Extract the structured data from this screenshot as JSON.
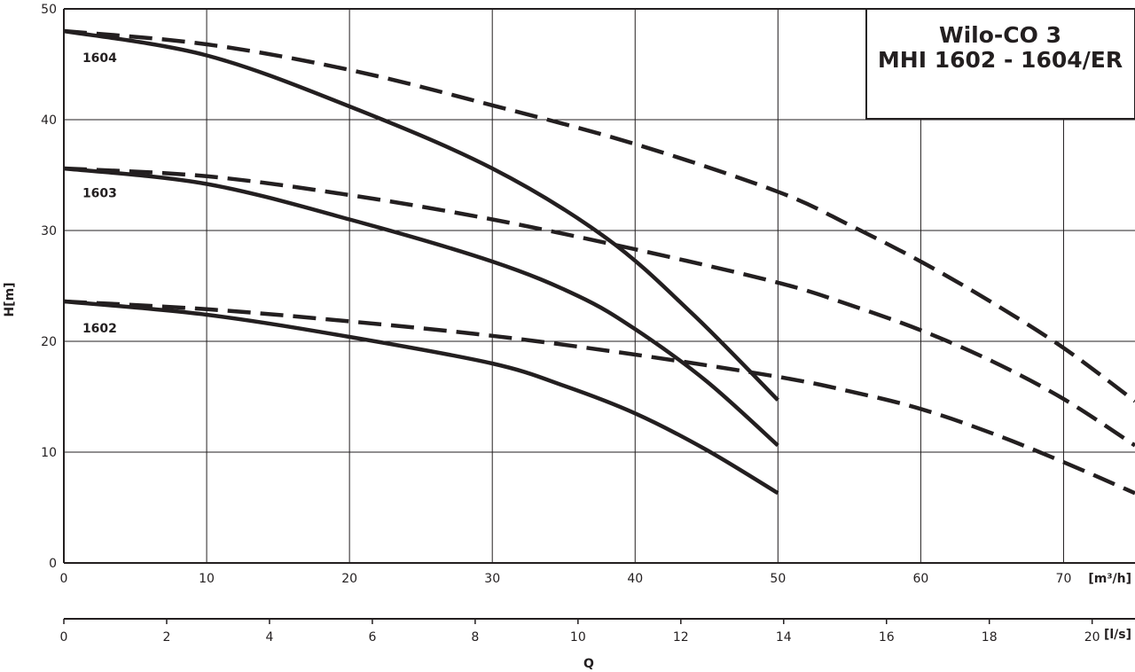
{
  "chart_data": {
    "type": "line",
    "title": [
      "Wilo-CO 3",
      "MHI 1602 - 1604/ER"
    ],
    "ylabel": "H[m]",
    "x_unit": "[m³/h]",
    "x2_unit": "[l/s]",
    "x2_label": "Q",
    "xlim": [
      0,
      75
    ],
    "ylim": [
      0,
      50
    ],
    "x_ticks": [
      0,
      10,
      20,
      30,
      40,
      50,
      60,
      70
    ],
    "y_ticks": [
      0,
      10,
      20,
      30,
      40,
      50
    ],
    "x2_ticks": [
      0,
      2,
      4,
      6,
      8,
      10,
      12,
      14,
      16,
      18,
      20
    ],
    "x2_per_x": 3.6,
    "grid": true,
    "series": [
      {
        "name": "1604",
        "style": "solid",
        "x": [
          0,
          10,
          20,
          30,
          38,
          44,
          50
        ],
        "y": [
          48.0,
          45.8,
          41.2,
          35.6,
          29.3,
          22.5,
          14.7
        ]
      },
      {
        "name": "1604",
        "style": "dashed",
        "x": [
          0,
          10,
          20,
          30,
          40,
          50,
          55,
          60,
          65,
          70,
          75
        ],
        "y": [
          48.0,
          46.8,
          44.5,
          41.3,
          37.8,
          33.5,
          30.5,
          27.2,
          23.5,
          19.4,
          14.6
        ]
      },
      {
        "name": "1603",
        "style": "solid",
        "x": [
          0,
          10,
          20,
          30,
          36,
          40,
          45,
          50
        ],
        "y": [
          35.6,
          34.2,
          31.0,
          27.2,
          24.1,
          21.1,
          16.4,
          10.6
        ]
      },
      {
        "name": "1603",
        "style": "dashed",
        "x": [
          0,
          10,
          20,
          30,
          40,
          50,
          55,
          60,
          65,
          70,
          75
        ],
        "y": [
          35.6,
          34.9,
          33.2,
          31.0,
          28.3,
          25.3,
          23.3,
          21.0,
          18.2,
          14.8,
          10.6
        ]
      },
      {
        "name": "1602",
        "style": "solid",
        "x": [
          0,
          10,
          20,
          30,
          35,
          40,
          45,
          50
        ],
        "y": [
          23.6,
          22.4,
          20.4,
          18.0,
          16.0,
          13.5,
          10.2,
          6.3
        ]
      },
      {
        "name": "1602",
        "style": "dashed",
        "x": [
          0,
          10,
          20,
          30,
          40,
          50,
          55,
          60,
          65,
          70,
          75
        ],
        "y": [
          23.6,
          22.9,
          21.8,
          20.5,
          18.8,
          16.8,
          15.5,
          13.9,
          11.7,
          9.1,
          6.3
        ]
      }
    ],
    "curve_labels": [
      {
        "text": "1604",
        "x": 1.3,
        "y": 45.2
      },
      {
        "text": "1603",
        "x": 1.3,
        "y": 33.0
      },
      {
        "text": "1602",
        "x": 1.3,
        "y": 20.8
      }
    ]
  }
}
